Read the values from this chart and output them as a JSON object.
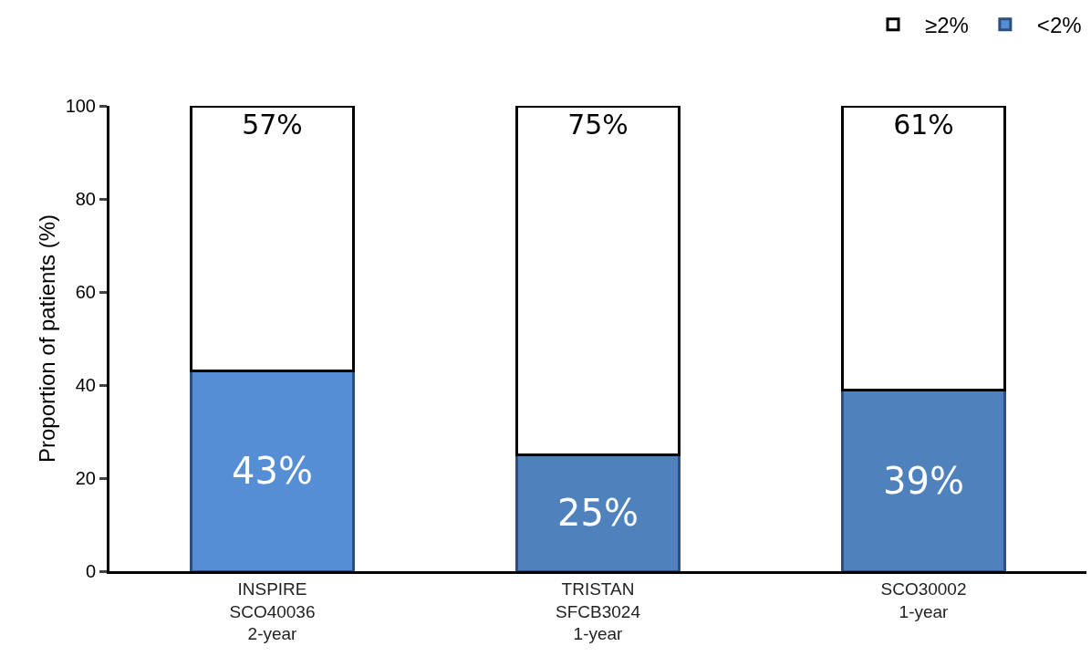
{
  "chart_data": {
    "type": "bar",
    "stacked": true,
    "ylabel": "Proportion of patients (%)",
    "categories": [
      "INSPIRE\nSCO40036\n2-year",
      "TRISTAN\nSFCB3024\n1-year",
      "SCO30002\n1-year"
    ],
    "series": [
      {
        "name": "<2%",
        "color": "#4f81bd",
        "colors": [
          "#558ed5",
          "#4f81bd",
          "#4f81bd"
        ],
        "values": [
          43,
          25,
          39
        ],
        "value_labels": [
          "43%",
          "25%",
          "39%"
        ]
      },
      {
        "name": "≥2%",
        "color": "#ffffff",
        "values": [
          57,
          75,
          61
        ],
        "value_labels": [
          "57%",
          "75%",
          "61%"
        ]
      }
    ],
    "ylim": [
      0,
      100
    ],
    "yticks": [
      0,
      20,
      40,
      60,
      80,
      100
    ],
    "grid": false,
    "legend": "top right"
  }
}
